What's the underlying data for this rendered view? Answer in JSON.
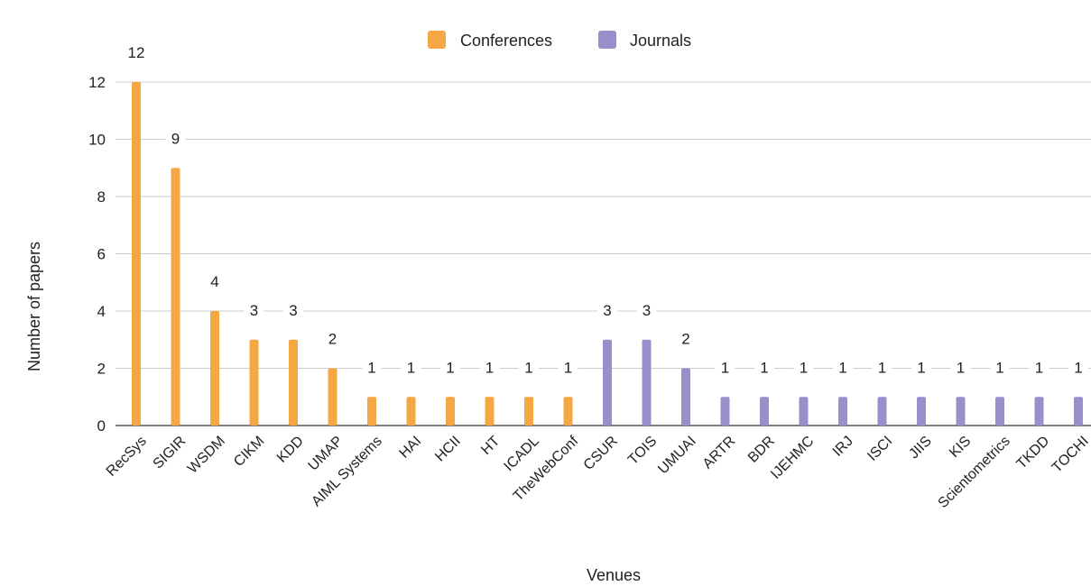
{
  "chart_data": {
    "type": "bar",
    "xlabel": "Venues",
    "ylabel": "Number of papers",
    "ylim": [
      0,
      12
    ],
    "yticks": [
      0,
      2,
      4,
      6,
      8,
      10,
      12
    ],
    "grid": true,
    "legend_position": "top-center",
    "categories": [
      "RecSys",
      "SIGIR",
      "WSDM",
      "CIKM",
      "KDD",
      "UMAP",
      "AIML Systems",
      "HAI",
      "HCII",
      "HT",
      "ICADL",
      "TheWebConf",
      "CSUR",
      "TOIS",
      "UMUAI",
      "ARTR",
      "BDR",
      "IJEHMC",
      "IRJ",
      "ISCI",
      "JIIS",
      "KIS",
      "Scientometrics",
      "TKDD",
      "TOCHI"
    ],
    "series": [
      {
        "name": "Conferences",
        "color": "#F4A742",
        "values": [
          12,
          9,
          4,
          3,
          3,
          2,
          1,
          1,
          1,
          1,
          1,
          1,
          null,
          null,
          null,
          null,
          null,
          null,
          null,
          null,
          null,
          null,
          null,
          null,
          null
        ]
      },
      {
        "name": "Journals",
        "color": "#9B8FCB",
        "values": [
          null,
          null,
          null,
          null,
          null,
          null,
          null,
          null,
          null,
          null,
          null,
          null,
          3,
          3,
          2,
          1,
          1,
          1,
          1,
          1,
          1,
          1,
          1,
          1,
          1
        ]
      }
    ]
  }
}
